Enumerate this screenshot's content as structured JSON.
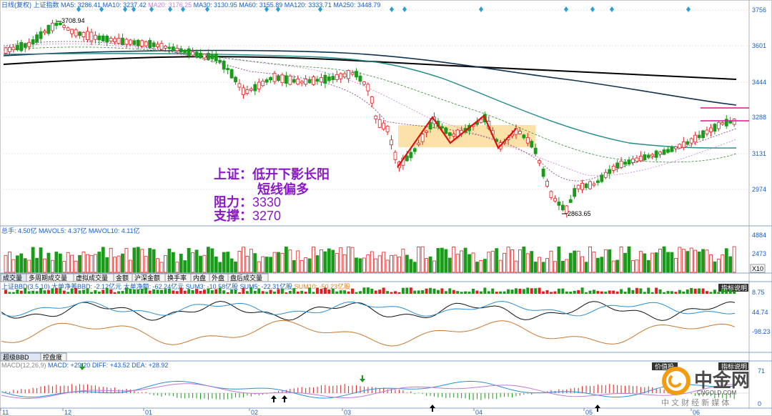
{
  "main_panel": {
    "header": [
      {
        "text": "日线(复权)",
        "color": "#1a5fc7"
      },
      {
        "text": "上证指数",
        "color": "#1a5fc7"
      },
      {
        "text": "MA5: 3286.41",
        "color": "#1a5fc7"
      },
      {
        "text": "MA10: 3237.42",
        "color": "#1a5fc7"
      },
      {
        "text": "MA20: 3176.25",
        "color": "#c97fe0"
      },
      {
        "text": "MA30: 3130.95",
        "color": "#1a5fc7"
      },
      {
        "text": "MA60: 3155.89",
        "color": "#1a5fc7"
      },
      {
        "text": "MA120: 3333.71",
        "color": "#1a5fc7"
      },
      {
        "text": "MA250: 3448.79",
        "color": "#1a5fc7"
      }
    ],
    "y_ticks": [
      "3756",
      "3601",
      "3444",
      "3288",
      "3131",
      "2974"
    ],
    "high_label": "3708.94",
    "low_label": "2863.65",
    "annotation": {
      "line1": "上证：低开下影长阳",
      "line2": "短线偏多",
      "line3_label": "阻力：",
      "line3_value": "3330",
      "line4_label": "支撑：",
      "line4_value": "3270"
    }
  },
  "volume_panel": {
    "header": [
      {
        "text": "总手: 4.50亿",
        "color": "#1a5fc7"
      },
      {
        "text": "MAVOL5: 4.37亿",
        "color": "#1a5fc7"
      },
      {
        "text": "MAVOL10: 4.11亿",
        "color": "#1a5fc7"
      }
    ],
    "y_ticks": [
      "4884",
      "2473"
    ],
    "unit": "X10"
  },
  "tabs_row1": [
    "成交量",
    "多周期成交量",
    "虚拟成交量",
    "金额",
    "沪深金额",
    "换手率",
    "内盘",
    "外盘",
    "盘后成交量"
  ],
  "bbd_panel": {
    "header": [
      {
        "text": "上证BBD(3,5,10)",
        "color": "#1a5fc7"
      },
      {
        "text": "大单净差BBD: -2.12亿元",
        "color": "#1a5fc7"
      },
      {
        "text": "大单净额: -62.24亿元",
        "color": "#1a5fc7"
      },
      {
        "text": "SUM3: -10.58亿股",
        "color": "#1a5fc7"
      },
      {
        "text": "SUM5: -22.31亿股",
        "color": "#1a5fc7"
      },
      {
        "text": "SUM10: -50.23亿股",
        "color": "#d9822b"
      }
    ],
    "y_ticks": [
      "8.75",
      "44.74",
      "-98.23"
    ],
    "badge": "指标说明"
  },
  "tabs_row2": [
    "超级BBD",
    "控盘度"
  ],
  "macd_panel": {
    "header": [
      {
        "text": "MACD(12,26,9)",
        "color": "#888888"
      },
      {
        "text": "MACD: +29.20",
        "color": "#1a5fc7"
      },
      {
        "text": "DIFF: +43.52",
        "color": "#1a5fc7"
      },
      {
        "text": "DEA: +28.92",
        "color": "#1a5fc7"
      }
    ],
    "y_ticks": [
      "71",
      "0"
    ],
    "badges": [
      "价值投",
      "指标说明"
    ]
  },
  "watermark": {
    "name": "中金网",
    "url": "CNGOLD.COM",
    "slogan": "中 文 财 经 新 媒 体"
  },
  "x_labels": [
    {
      "text": "11",
      "x": 0
    },
    {
      "text": "12",
      "x": 87
    },
    {
      "text": "01",
      "x": 200
    },
    {
      "text": "02",
      "x": 348
    },
    {
      "text": "03",
      "x": 478
    },
    {
      "text": "04",
      "x": 662
    },
    {
      "text": "05",
      "x": 816
    },
    {
      "text": "06",
      "x": 966
    }
  ],
  "chart_data": {
    "type": "candlestick",
    "title": "上证指数",
    "period": "日线(复权)",
    "y_range": [
      2863.65,
      3756
    ],
    "highest": 3708.94,
    "lowest": 2863.65,
    "moving_averages": {
      "MA5": 3286.41,
      "MA10": 3237.42,
      "MA20": 3176.25,
      "MA30": 3130.95,
      "MA60": 3155.89,
      "MA120": 3333.71,
      "MA250": 3448.79
    },
    "resistance": 3330,
    "support": 3270,
    "volume": {
      "total": "4.50亿",
      "MAVOL5": "4.37亿",
      "MAVOL10": "4.11亿"
    },
    "bbd": {
      "BBD": "-2.12亿元",
      "net": "-62.24亿元",
      "SUM3": "-10.58亿股",
      "SUM5": "-22.31亿股",
      "SUM10": "-50.23亿股"
    },
    "macd": {
      "MACD": 29.2,
      "DIFF": 43.52,
      "DEA": 28.92
    }
  }
}
